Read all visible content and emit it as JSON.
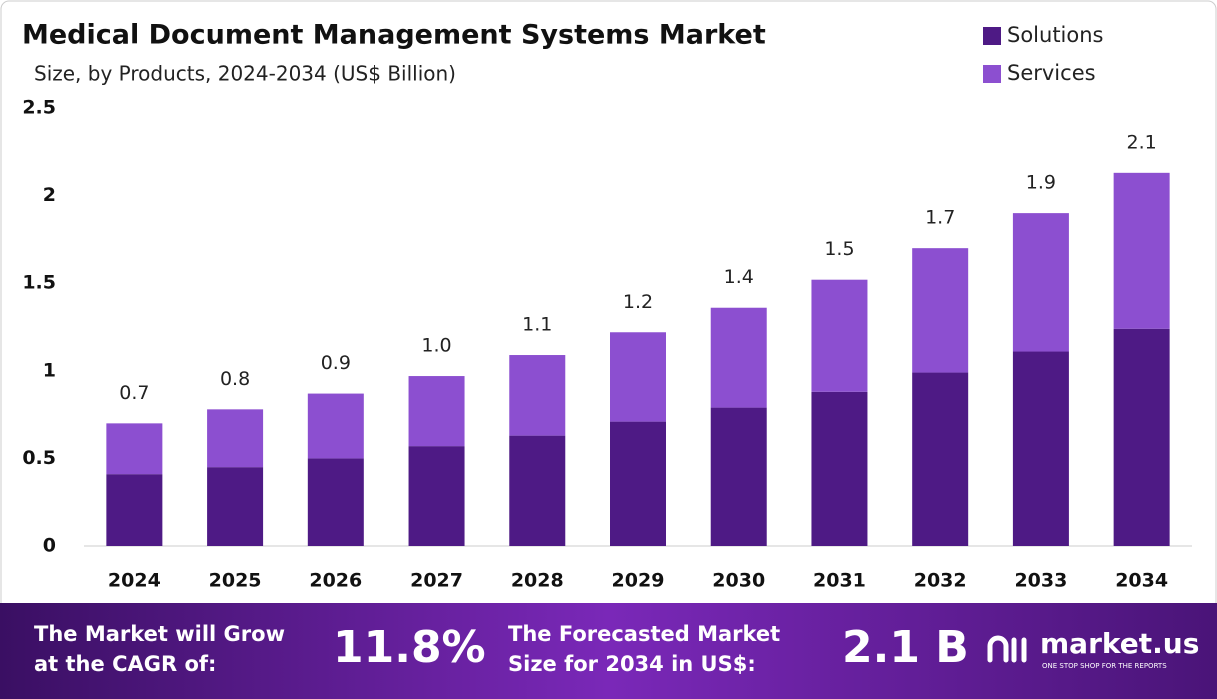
{
  "chart_data": {
    "type": "stacked_bar",
    "title": "Medical Document Management Systems Market",
    "subtitle": "Size, by Products, 2024-2034 (US$ Billion)",
    "categories": [
      "2024",
      "2025",
      "2026",
      "2027",
      "2028",
      "2029",
      "2030",
      "2031",
      "2032",
      "2033",
      "2034"
    ],
    "series": [
      {
        "name": "Solutions",
        "color": "#4e1a85",
        "values": [
          0.41,
          0.45,
          0.5,
          0.57,
          0.63,
          0.71,
          0.79,
          0.88,
          0.99,
          1.11,
          1.24
        ]
      },
      {
        "name": "Services",
        "color": "#8c4fd0",
        "values": [
          0.29,
          0.33,
          0.37,
          0.4,
          0.46,
          0.51,
          0.57,
          0.64,
          0.71,
          0.79,
          0.89
        ]
      }
    ],
    "totals": {
      "values": [
        0.7,
        0.78,
        0.87,
        0.97,
        1.09,
        1.22,
        1.36,
        1.52,
        1.7,
        1.9,
        2.13
      ],
      "value_labels": [
        "0.7",
        "0.8",
        "0.9",
        "1.0",
        "1.1",
        "1.2",
        "1.4",
        "1.5",
        "1.7",
        "1.9",
        "2.1"
      ]
    },
    "ylim": [
      0,
      2.5
    ],
    "yticks": [
      0,
      0.5,
      1,
      1.5,
      2,
      2.5
    ],
    "grid": false,
    "legend": "top-right"
  },
  "footer": {
    "cagr_text": [
      "The Market will Grow",
      "at the CAGR of:"
    ],
    "cagr_value": "11.8%",
    "forecast_text": [
      "The Forecasted Market",
      "Size for 2034 in US$:"
    ],
    "forecast_value": "2.1 B",
    "brand": "market.us",
    "tagline": "ONE STOP SHOP FOR THE REPORTS"
  }
}
